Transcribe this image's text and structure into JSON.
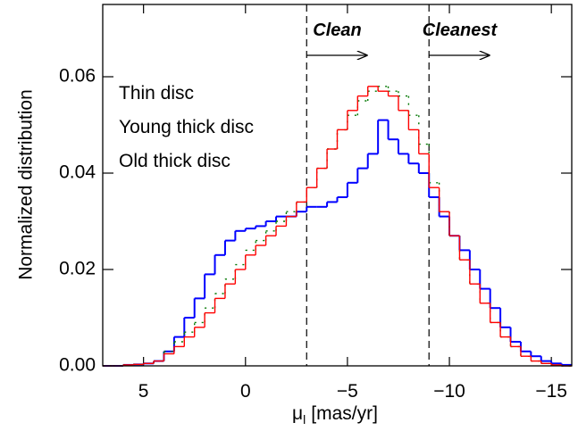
{
  "chart_data": {
    "type": "histogram",
    "y_label": "Normalized distribution",
    "x_label": {
      "symbol": "μ",
      "subscript": "l",
      "unit": "[mas/yr]"
    },
    "xlim": [
      7,
      -16
    ],
    "ylim": [
      0,
      0.075
    ],
    "xticks": [
      5,
      0,
      {
        "value": -5,
        "label": "−5"
      },
      {
        "value": -10,
        "label": "−10"
      },
      {
        "value": -15,
        "label": "−15"
      }
    ],
    "yticks": [
      {
        "value": 0,
        "label": "0.00"
      },
      0.02,
      0.04,
      0.06
    ],
    "legend": "upper left",
    "vlines": [
      -3,
      -9
    ],
    "arrows": [
      {
        "label": "Clean",
        "from": -3,
        "to": -6
      },
      {
        "label": "Cleanest",
        "from": -9,
        "to": -12
      }
    ],
    "bins": [
      7,
      6.5,
      6,
      5.5,
      5,
      4.5,
      4,
      3.5,
      3,
      2.5,
      2,
      1.5,
      1,
      0.5,
      0,
      -0.5,
      -1,
      -1.5,
      -2,
      -2.5,
      -3,
      -3.5,
      -4,
      -4.5,
      -5,
      -5.5,
      -6,
      -6.5,
      -7,
      -7.5,
      -8,
      -8.5,
      -9,
      -9.5,
      -10,
      -10.5,
      -11,
      -11.5,
      -12,
      -12.5,
      -13,
      -13.5,
      -14,
      -14.5,
      -15,
      -15.5,
      -16
    ],
    "series": [
      {
        "name": "Thin disc",
        "color": "#0000ff",
        "style": "solid",
        "values": [
          0,
          0,
          0.0002,
          0.0003,
          0.0005,
          0.001,
          0.003,
          0.006,
          0.01,
          0.014,
          0.019,
          0.023,
          0.026,
          0.028,
          0.0285,
          0.029,
          0.03,
          0.031,
          0.031,
          0.032,
          0.033,
          0.033,
          0.034,
          0.035,
          0.038,
          0.041,
          0.044,
          0.051,
          0.047,
          0.044,
          0.042,
          0.04,
          0.035,
          0.031,
          0.027,
          0.024,
          0.02,
          0.016,
          0.012,
          0.008,
          0.005,
          0.003,
          0.002,
          0.001,
          0.0005,
          0.0002
        ]
      },
      {
        "name": "Young thick disc",
        "color": "#007700",
        "style": "dotted",
        "values": [
          0,
          0,
          0.0002,
          0.0003,
          0.0005,
          0.001,
          0.003,
          0.005,
          0.007,
          0.009,
          0.012,
          0.015,
          0.018,
          0.021,
          0.024,
          0.026,
          0.028,
          0.03,
          0.032,
          0.034,
          0.037,
          0.041,
          0.045,
          0.049,
          0.052,
          0.055,
          0.057,
          0.058,
          0.057,
          0.056,
          0.052,
          0.046,
          0.038,
          0.032,
          0.027,
          0.022,
          0.017,
          0.013,
          0.009,
          0.006,
          0.004,
          0.002,
          0.001,
          0.0005,
          0.0002,
          0
        ]
      },
      {
        "name": "Old thick disc",
        "color": "#ff0000",
        "style": "solid",
        "values": [
          0,
          0,
          0.0002,
          0.0003,
          0.0005,
          0.001,
          0.0025,
          0.004,
          0.006,
          0.008,
          0.011,
          0.014,
          0.017,
          0.02,
          0.023,
          0.025,
          0.027,
          0.029,
          0.031,
          0.034,
          0.037,
          0.041,
          0.045,
          0.049,
          0.053,
          0.056,
          0.058,
          0.057,
          0.056,
          0.053,
          0.049,
          0.044,
          0.037,
          0.032,
          0.027,
          0.022,
          0.017,
          0.013,
          0.009,
          0.006,
          0.004,
          0.002,
          0.001,
          0.0005,
          0.0002,
          0
        ]
      }
    ]
  }
}
